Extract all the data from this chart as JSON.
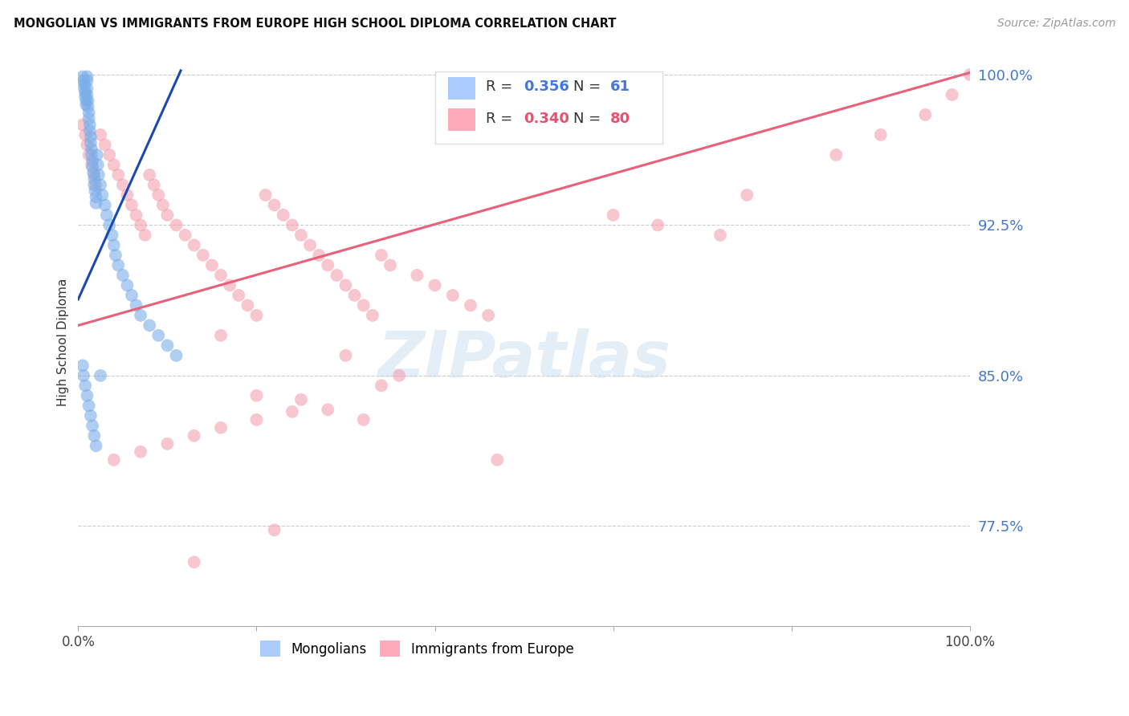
{
  "title": "MONGOLIAN VS IMMIGRANTS FROM EUROPE HIGH SCHOOL DIPLOMA CORRELATION CHART",
  "source": "Source: ZipAtlas.com",
  "ylabel": "High School Diploma",
  "xlim": [
    0.0,
    1.0
  ],
  "ylim": [
    0.725,
    1.008
  ],
  "yticks": [
    0.775,
    0.85,
    0.925,
    1.0
  ],
  "yticklabels": [
    "77.5%",
    "85.0%",
    "92.5%",
    "100.0%"
  ],
  "xticks": [
    0.0,
    0.2,
    0.4,
    0.6,
    0.8,
    1.0
  ],
  "xticklabels": [
    "0.0%",
    "",
    "",
    "",
    "",
    "100.0%"
  ],
  "watermark": "ZIPatlas",
  "blue_color": "#7baee8",
  "pink_color": "#f4a0b0",
  "blue_line_color": "#1a4ab0",
  "pink_line_color": "#e8607a",
  "scatter_alpha": 0.6,
  "scatter_size": 130,
  "blue_trend_x": [
    0.0,
    0.115
  ],
  "blue_trend_y": [
    0.888,
    1.002
  ],
  "pink_trend_x": [
    0.0,
    1.0
  ],
  "pink_trend_y": [
    0.875,
    1.001
  ],
  "legend_box_text": [
    {
      "r": "0.356",
      "n": "61",
      "color": "#4477dd"
    },
    {
      "r": "0.340",
      "n": "80",
      "color": "#e85070"
    }
  ],
  "legend_patch_blue": "#aaccff",
  "legend_patch_pink": "#ffaabb",
  "mongolians_x": [
    0.005,
    0.006,
    0.007,
    0.007,
    0.008,
    0.008,
    0.009,
    0.009,
    0.01,
    0.01,
    0.01,
    0.01,
    0.011,
    0.011,
    0.012,
    0.012,
    0.013,
    0.013,
    0.014,
    0.014,
    0.015,
    0.015,
    0.016,
    0.016,
    0.017,
    0.018,
    0.018,
    0.019,
    0.02,
    0.02,
    0.021,
    0.022,
    0.023,
    0.025,
    0.027,
    0.03,
    0.032,
    0.035,
    0.038,
    0.04,
    0.042,
    0.045,
    0.05,
    0.055,
    0.06,
    0.065,
    0.07,
    0.08,
    0.09,
    0.1,
    0.11,
    0.005,
    0.006,
    0.008,
    0.01,
    0.012,
    0.014,
    0.016,
    0.018,
    0.02,
    0.025
  ],
  "mongolians_y": [
    0.999,
    0.997,
    0.995,
    0.993,
    0.991,
    0.989,
    0.987,
    0.985,
    0.999,
    0.997,
    0.993,
    0.99,
    0.987,
    0.984,
    0.981,
    0.978,
    0.975,
    0.972,
    0.969,
    0.966,
    0.963,
    0.96,
    0.957,
    0.954,
    0.951,
    0.948,
    0.945,
    0.942,
    0.939,
    0.936,
    0.96,
    0.955,
    0.95,
    0.945,
    0.94,
    0.935,
    0.93,
    0.925,
    0.92,
    0.915,
    0.91,
    0.905,
    0.9,
    0.895,
    0.89,
    0.885,
    0.88,
    0.875,
    0.87,
    0.865,
    0.86,
    0.855,
    0.85,
    0.845,
    0.84,
    0.835,
    0.83,
    0.825,
    0.82,
    0.815,
    0.85
  ],
  "europe_x": [
    0.005,
    0.008,
    0.01,
    0.012,
    0.015,
    0.018,
    0.02,
    0.025,
    0.03,
    0.035,
    0.04,
    0.045,
    0.05,
    0.055,
    0.06,
    0.065,
    0.07,
    0.075,
    0.08,
    0.085,
    0.09,
    0.095,
    0.1,
    0.11,
    0.12,
    0.13,
    0.14,
    0.15,
    0.16,
    0.17,
    0.18,
    0.19,
    0.2,
    0.21,
    0.22,
    0.23,
    0.24,
    0.25,
    0.26,
    0.27,
    0.28,
    0.29,
    0.3,
    0.31,
    0.32,
    0.33,
    0.34,
    0.35,
    0.38,
    0.4,
    0.42,
    0.44,
    0.46,
    0.13,
    0.22,
    0.2,
    0.16,
    0.3,
    0.36,
    0.47,
    0.25,
    0.28,
    0.32,
    0.34,
    0.6,
    0.65,
    0.72,
    0.75,
    0.85,
    0.9,
    0.95,
    0.98,
    1.0,
    0.04,
    0.07,
    0.1,
    0.13,
    0.16,
    0.2,
    0.24
  ],
  "europe_y": [
    0.975,
    0.97,
    0.965,
    0.96,
    0.955,
    0.95,
    0.945,
    0.97,
    0.965,
    0.96,
    0.955,
    0.95,
    0.945,
    0.94,
    0.935,
    0.93,
    0.925,
    0.92,
    0.95,
    0.945,
    0.94,
    0.935,
    0.93,
    0.925,
    0.92,
    0.915,
    0.91,
    0.905,
    0.9,
    0.895,
    0.89,
    0.885,
    0.88,
    0.94,
    0.935,
    0.93,
    0.925,
    0.92,
    0.915,
    0.91,
    0.905,
    0.9,
    0.895,
    0.89,
    0.885,
    0.88,
    0.91,
    0.905,
    0.9,
    0.895,
    0.89,
    0.885,
    0.88,
    0.757,
    0.773,
    0.84,
    0.87,
    0.86,
    0.85,
    0.808,
    0.838,
    0.833,
    0.828,
    0.845,
    0.93,
    0.925,
    0.92,
    0.94,
    0.96,
    0.97,
    0.98,
    0.99,
    1.0,
    0.808,
    0.812,
    0.816,
    0.82,
    0.824,
    0.828,
    0.832
  ]
}
